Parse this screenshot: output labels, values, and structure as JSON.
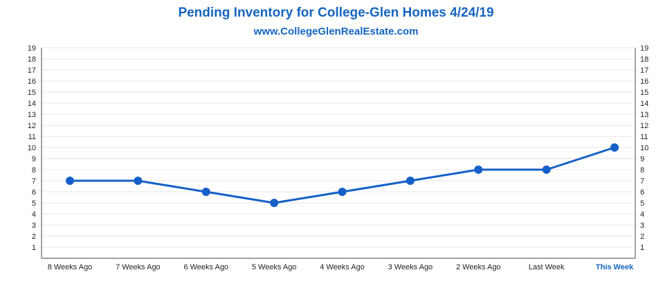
{
  "chart_data": {
    "type": "line",
    "title": "Pending Inventory for College-Glen Homes 4/24/19",
    "subtitle": "www.CollegeGlenRealEstate.com",
    "categories": [
      "8 Weeks Ago",
      "7 Weeks Ago",
      "6 Weeks Ago",
      "5 Weeks Ago",
      "4 Weeks Ago",
      "3 Weeks Ago",
      "2 Weeks Ago",
      "Last Week",
      "This Week"
    ],
    "highlight_category": "This Week",
    "values": [
      7,
      7,
      6,
      5,
      6,
      7,
      8,
      8,
      10
    ],
    "y_ticks": [
      1,
      2,
      3,
      4,
      5,
      6,
      7,
      8,
      9,
      10,
      11,
      12,
      13,
      14,
      15,
      16,
      17,
      18,
      19
    ],
    "ylim": [
      0,
      19
    ],
    "grid": true,
    "axes": "left-and-right",
    "legend": "none",
    "colors": {
      "line": "#1560c8",
      "title": "#1565c0",
      "grid": "#e6e6e6",
      "axis": "#444444"
    }
  }
}
